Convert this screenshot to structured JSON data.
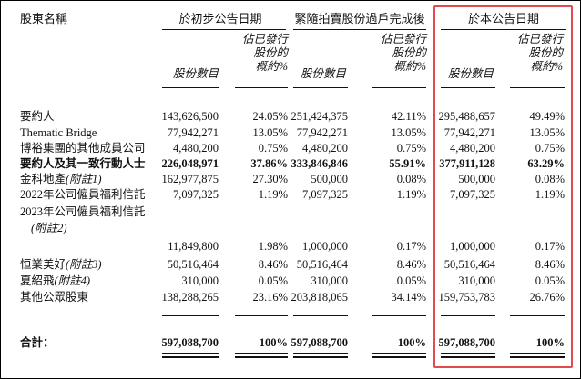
{
  "header": {
    "shareholder_label": "股東名稱",
    "groups": [
      {
        "title": "於初步公告日期"
      },
      {
        "title": "緊隨拍賣股份過戶完成後"
      },
      {
        "title": "於本公告日期"
      }
    ],
    "pct_header": [
      "佔已發行",
      "股份的",
      "概約%"
    ],
    "shares_header": "股份數目"
  },
  "rows": [
    {
      "name": "要約人",
      "name_suffix": "",
      "bold": false,
      "v": [
        "143,626,500",
        "24.05%",
        "251,424,375",
        "42.11%",
        "295,488,657",
        "49.49%"
      ]
    },
    {
      "name": "Thematic Bridge",
      "name_suffix": "",
      "bold": false,
      "v": [
        "77,942,271",
        "13.05%",
        "77,942,271",
        "13.05%",
        "77,942,271",
        "13.05%"
      ]
    },
    {
      "name": "博裕集團的其他成員公司",
      "name_suffix": "",
      "bold": false,
      "v": [
        "4,480,200",
        "0.75%",
        "4,480,200",
        "0.75%",
        "4,480,200",
        "0.75%"
      ]
    },
    {
      "name": "要約人及其一致行動人士",
      "name_suffix": "",
      "bold": true,
      "v": [
        "226,048,971",
        "37.86%",
        "333,846,846",
        "55.91%",
        "377,911,128",
        "63.29%"
      ]
    },
    {
      "name": "金科地產",
      "name_suffix": "(附註1)",
      "bold": false,
      "v": [
        "162,977,875",
        "27.30%",
        "500,000",
        "0.08%",
        "500,000",
        "0.08%"
      ]
    },
    {
      "name": "2022年公司僱員福利信託",
      "name_suffix": "",
      "bold": false,
      "v": [
        "7,097,325",
        "1.19%",
        "7,097,325",
        "1.19%",
        "7,097,325",
        "1.19%"
      ]
    },
    {
      "name": "2023年公司僱員福利信託",
      "name_line2": "(附註2)",
      "bold": false,
      "v": [
        "11,849,800",
        "1.98%",
        "1,000,000",
        "0.17%",
        "1,000,000",
        "0.17%"
      ]
    },
    {
      "name": "恒業美好",
      "name_suffix": "(附註3)",
      "bold": false,
      "v": [
        "50,516,464",
        "8.46%",
        "50,516,464",
        "8.46%",
        "50,516,464",
        "8.46%"
      ]
    },
    {
      "name": "夏紹飛",
      "name_suffix": "(附註4)",
      "bold": false,
      "v": [
        "310,000",
        "0.05%",
        "310,000",
        "0.05%",
        "310,000",
        "0.05%"
      ]
    },
    {
      "name": "其他公眾股東",
      "name_suffix": "",
      "bold": false,
      "v": [
        "138,288,265",
        "23.16%",
        "203,818,065",
        "34.14%",
        "159,753,783",
        "26.76%"
      ]
    }
  ],
  "total": {
    "label": "合計：",
    "v": [
      "597,088,700",
      "100%",
      "597,088,700",
      "100%",
      "597,088,700",
      "100%"
    ]
  },
  "highlight_color": "#e24a4f"
}
